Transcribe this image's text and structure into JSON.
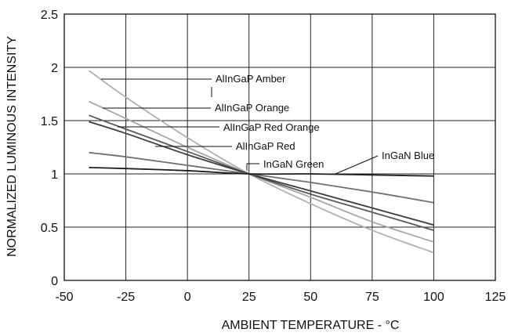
{
  "chart_data": {
    "type": "line",
    "title": "",
    "xlabel": "AMBIENT TEMPERATURE - °C",
    "ylabel": "NORMALIZED LUMINOUS INTENSITY",
    "xlim": [
      -50,
      125
    ],
    "ylim": [
      0,
      2.5
    ],
    "x_ticks": [
      "-50",
      "-25",
      "0",
      "25",
      "50",
      "75",
      "100",
      "125"
    ],
    "y_ticks": [
      "0",
      "0.5",
      "1",
      "1.5",
      "2",
      "2.5"
    ],
    "grid": true,
    "legend": "inline labels with leader lines",
    "series": [
      {
        "name": "AlInGaP Amber",
        "color": "#b0b0b0",
        "points": [
          [
            -40,
            1.97
          ],
          [
            -25,
            1.72
          ],
          [
            0,
            1.34
          ],
          [
            25,
            1.0
          ],
          [
            50,
            0.72
          ],
          [
            75,
            0.47
          ],
          [
            100,
            0.26
          ]
        ]
      },
      {
        "name": "AlInGaP Orange",
        "color": "#a6a6a6",
        "points": [
          [
            -40,
            1.68
          ],
          [
            -25,
            1.52
          ],
          [
            0,
            1.25
          ],
          [
            25,
            1.0
          ],
          [
            50,
            0.78
          ],
          [
            75,
            0.55
          ],
          [
            100,
            0.36
          ]
        ]
      },
      {
        "name": "AlInGaP Red Orange",
        "color": "#5a5a5a",
        "points": [
          [
            -40,
            1.55
          ],
          [
            -25,
            1.42
          ],
          [
            0,
            1.21
          ],
          [
            25,
            1.0
          ],
          [
            50,
            0.81
          ],
          [
            75,
            0.64
          ],
          [
            100,
            0.47
          ]
        ]
      },
      {
        "name": "AlInGaP Red",
        "color": "#3c3c3c",
        "points": [
          [
            -40,
            1.49
          ],
          [
            -25,
            1.38
          ],
          [
            0,
            1.18
          ],
          [
            25,
            1.0
          ],
          [
            50,
            0.84
          ],
          [
            75,
            0.68
          ],
          [
            100,
            0.52
          ]
        ]
      },
      {
        "name": "InGaN Green",
        "color": "#6e6e6e",
        "points": [
          [
            -40,
            1.2
          ],
          [
            -25,
            1.16
          ],
          [
            0,
            1.08
          ],
          [
            25,
            1.0
          ],
          [
            50,
            0.92
          ],
          [
            75,
            0.83
          ],
          [
            100,
            0.73
          ]
        ]
      },
      {
        "name": "InGaN Blue",
        "color": "#1e1e1e",
        "points": [
          [
            -40,
            1.06
          ],
          [
            -25,
            1.05
          ],
          [
            0,
            1.03
          ],
          [
            25,
            1.0
          ],
          [
            50,
            1.0
          ],
          [
            75,
            0.99
          ],
          [
            100,
            0.98
          ]
        ]
      }
    ]
  }
}
